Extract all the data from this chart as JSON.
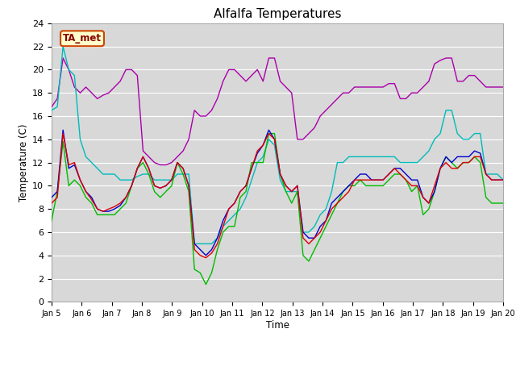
{
  "title": "Alfalfa Temperatures",
  "xlabel": "Time",
  "ylabel": "Temperature (C)",
  "ylim": [
    0,
    24
  ],
  "yticks": [
    0,
    2,
    4,
    6,
    8,
    10,
    12,
    14,
    16,
    18,
    20,
    22,
    24
  ],
  "xtick_labels": [
    "Jan 5",
    "Jan 6",
    "Jan 7",
    "Jan 8",
    "Jan 9",
    "Jan 10",
    "Jan 11",
    "Jan 12",
    "Jan 13",
    "Jan 14",
    "Jan 15",
    "Jan 16",
    "Jan 17",
    "Jan 18",
    "Jan 19",
    "Jan 20"
  ],
  "annotation_text": "TA_met",
  "annotation_facecolor": "#ffffcc",
  "annotation_edgecolor": "#cc4400",
  "annotation_textcolor": "#880000",
  "colors": {
    "PanelT": "#dd0000",
    "HMP60": "#0000cc",
    "NR01_PRT": "#00bb00",
    "SonicT": "#aa00aa",
    "AM25T_PRT": "#00bbbb"
  },
  "background_color": "#d8d8d8",
  "fig_background": "#ffffff",
  "grid_color": "#ffffff",
  "series": {
    "PanelT": [
      8.5,
      9.0,
      14.5,
      11.8,
      12.0,
      10.5,
      9.5,
      8.8,
      8.0,
      7.8,
      8.0,
      8.2,
      8.5,
      9.0,
      10.0,
      11.5,
      12.5,
      11.5,
      10.0,
      9.8,
      10.0,
      10.5,
      12.0,
      11.5,
      10.0,
      4.5,
      4.0,
      3.8,
      4.2,
      5.0,
      6.5,
      8.0,
      8.5,
      9.5,
      10.0,
      11.5,
      13.0,
      13.5,
      14.5,
      14.0,
      11.0,
      10.0,
      9.5,
      10.0,
      5.5,
      5.0,
      5.5,
      6.0,
      7.0,
      8.0,
      8.5,
      9.0,
      9.5,
      10.5,
      10.5,
      10.5,
      10.5,
      10.5,
      10.5,
      11.0,
      11.5,
      11.0,
      10.5,
      10.0,
      10.0,
      9.0,
      8.5,
      10.0,
      11.5,
      12.0,
      11.5,
      11.5,
      12.0,
      12.0,
      12.5,
      12.5,
      11.0,
      10.5,
      10.5,
      10.5
    ],
    "HMP60": [
      9.0,
      9.5,
      14.8,
      11.5,
      11.8,
      10.5,
      9.5,
      9.0,
      8.0,
      7.8,
      7.8,
      8.0,
      8.3,
      9.0,
      10.0,
      11.5,
      12.5,
      11.5,
      10.0,
      9.8,
      10.0,
      10.5,
      12.0,
      11.5,
      10.0,
      5.0,
      4.5,
      4.0,
      4.5,
      5.5,
      7.0,
      8.0,
      8.5,
      9.5,
      10.0,
      11.5,
      12.8,
      13.5,
      14.8,
      14.0,
      11.0,
      10.0,
      9.5,
      10.0,
      6.0,
      5.5,
      5.5,
      6.5,
      7.0,
      8.5,
      9.0,
      9.5,
      10.0,
      10.5,
      11.0,
      11.0,
      10.5,
      10.5,
      10.5,
      11.0,
      11.5,
      11.5,
      11.0,
      10.5,
      10.5,
      9.0,
      8.5,
      9.5,
      11.5,
      12.5,
      12.0,
      12.5,
      12.5,
      12.5,
      13.0,
      12.8,
      11.0,
      10.5,
      10.5,
      10.5
    ],
    "NR01_PRT": [
      7.0,
      9.5,
      13.8,
      10.0,
      10.5,
      10.0,
      9.0,
      8.5,
      7.5,
      7.5,
      7.5,
      7.5,
      8.0,
      8.5,
      10.0,
      11.5,
      12.0,
      11.0,
      9.5,
      9.0,
      9.5,
      10.0,
      12.0,
      11.0,
      9.5,
      2.8,
      2.5,
      1.5,
      2.5,
      4.5,
      6.0,
      6.5,
      6.5,
      9.0,
      9.5,
      12.0,
      12.0,
      12.0,
      14.5,
      14.5,
      11.0,
      9.5,
      8.5,
      9.5,
      4.0,
      3.5,
      4.5,
      5.5,
      6.5,
      7.5,
      8.5,
      9.5,
      10.0,
      10.0,
      10.5,
      10.0,
      10.0,
      10.0,
      10.0,
      10.5,
      11.0,
      11.0,
      10.5,
      9.5,
      10.0,
      7.5,
      8.0,
      9.5,
      11.5,
      12.5,
      12.0,
      11.5,
      12.0,
      12.0,
      12.5,
      12.0,
      9.0,
      8.5,
      8.5,
      8.5
    ],
    "SonicT": [
      16.8,
      17.5,
      21.0,
      20.0,
      18.5,
      18.0,
      18.5,
      18.0,
      17.5,
      17.8,
      18.0,
      18.5,
      19.0,
      20.0,
      20.0,
      19.5,
      13.0,
      12.5,
      12.0,
      11.8,
      11.8,
      12.0,
      12.5,
      13.0,
      14.0,
      16.5,
      16.0,
      16.0,
      16.5,
      17.5,
      19.0,
      20.0,
      20.0,
      19.5,
      19.0,
      19.5,
      20.0,
      19.0,
      21.0,
      21.0,
      19.0,
      18.5,
      18.0,
      14.0,
      14.0,
      14.5,
      15.0,
      16.0,
      16.5,
      17.0,
      17.5,
      18.0,
      18.0,
      18.5,
      18.5,
      18.5,
      18.5,
      18.5,
      18.5,
      18.8,
      18.8,
      17.5,
      17.5,
      18.0,
      18.0,
      18.5,
      19.0,
      20.5,
      20.8,
      21.0,
      21.0,
      19.0,
      19.0,
      19.5,
      19.5,
      19.0,
      18.5,
      18.5,
      18.5,
      18.5
    ],
    "AM25T_PRT": [
      16.5,
      16.8,
      22.0,
      20.0,
      19.5,
      14.0,
      12.5,
      12.0,
      11.5,
      11.0,
      11.0,
      11.0,
      10.5,
      10.5,
      10.5,
      10.8,
      11.0,
      11.0,
      10.5,
      10.5,
      10.5,
      10.5,
      11.0,
      11.0,
      11.0,
      5.0,
      5.0,
      5.0,
      5.0,
      5.5,
      6.5,
      7.0,
      7.5,
      8.0,
      9.0,
      10.5,
      12.0,
      12.5,
      14.0,
      13.5,
      10.5,
      9.5,
      9.5,
      9.5,
      6.0,
      6.0,
      6.5,
      7.5,
      8.0,
      9.5,
      12.0,
      12.0,
      12.5,
      12.5,
      12.5,
      12.5,
      12.5,
      12.5,
      12.5,
      12.5,
      12.5,
      12.0,
      12.0,
      12.0,
      12.0,
      12.5,
      13.0,
      14.0,
      14.5,
      16.5,
      16.5,
      14.5,
      14.0,
      14.0,
      14.5,
      14.5,
      11.0,
      11.0,
      11.0,
      10.5
    ]
  }
}
